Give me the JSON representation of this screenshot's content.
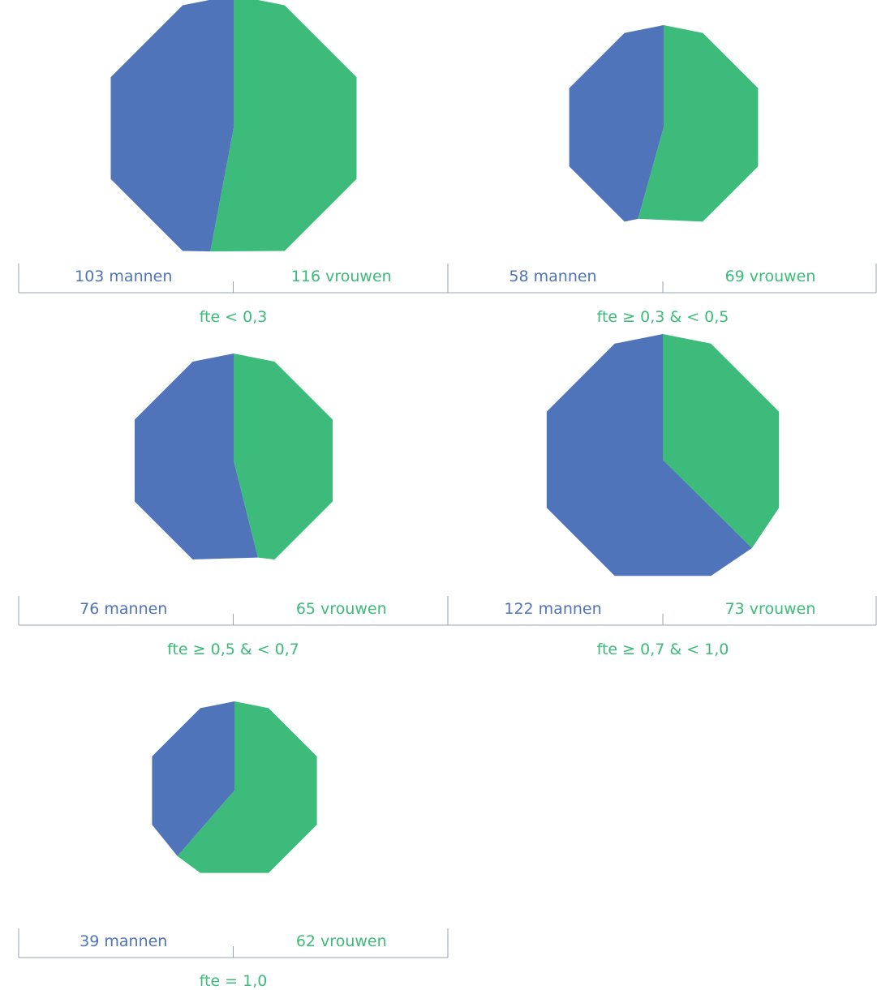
{
  "colors": {
    "men": "#4f74b9",
    "women": "#3cbb7a",
    "line": "#9aa3b0"
  },
  "chart_data": [
    {
      "type": "pie",
      "category": "fte < 0,3",
      "series": [
        {
          "label": "103 mannen",
          "value": 103
        },
        {
          "label": "116 vrouwen",
          "value": 116
        }
      ]
    },
    {
      "type": "pie",
      "category": "fte ≥ 0,3 & < 0,5",
      "series": [
        {
          "label": "58 mannen",
          "value": 58
        },
        {
          "label": "69 vrouwen",
          "value": 69
        }
      ]
    },
    {
      "type": "pie",
      "category": "fte ≥ 0,5 & < 0,7",
      "series": [
        {
          "label": "76 mannen",
          "value": 76
        },
        {
          "label": "65 vrouwen",
          "value": 65
        }
      ]
    },
    {
      "type": "pie",
      "category": "fte ≥ 0,7 & < 1,0",
      "series": [
        {
          "label": "122 mannen",
          "value": 122
        },
        {
          "label": "73 vrouwen",
          "value": 73
        }
      ]
    },
    {
      "type": "pie",
      "category": "fte = 1,0",
      "series": [
        {
          "label": "39 mannen",
          "value": 39
        },
        {
          "label": "62 vrouwen",
          "value": 62
        }
      ]
    }
  ]
}
